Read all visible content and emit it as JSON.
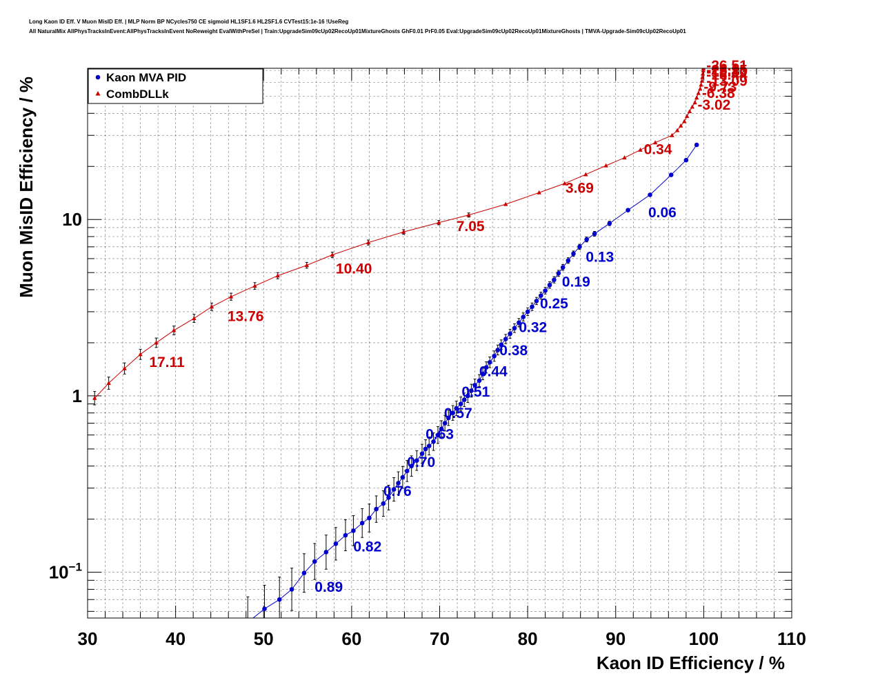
{
  "header": {
    "title_line1": "Long Kaon ID Eff. V Muon MisID Eff. | MLP Norm BP NCycles750 CE sigmoid HL1SF1.6 HL2SF1.6 CVTest15:1e-16 !UseReg",
    "title_line2": "All NaturalMix AllPhysTracksInEvent:AllPhysTracksInEvent NoReweight EvalWithPreSel | Train:UpgradeSim09cUp02RecoUp01MixtureGhosts GhF0.01 PrF0.05 Eval:UpgradeSim09cUp02RecoUp01MixtureGhosts | TMVA-Upgrade-Sim09cUp02RecoUp01"
  },
  "chart_data": {
    "type": "scatter",
    "xlabel": "Kaon ID Efficiency / %",
    "ylabel": "Muon MisID Efficiency / %",
    "xlim": [
      30,
      110
    ],
    "ylim": [
      0.055,
      72
    ],
    "xscale": "linear",
    "yscale": "log",
    "grid": true,
    "legend_position": "top-left",
    "x_ticks": [
      "30",
      "40",
      "50",
      "60",
      "70",
      "80",
      "90",
      "100",
      "110"
    ],
    "y_ticks": [
      {
        "value": 0.1,
        "base": "10",
        "exp": "−1"
      },
      {
        "value": 1,
        "base": "1",
        "exp": ""
      },
      {
        "value": 10,
        "base": "10",
        "exp": ""
      }
    ],
    "series": [
      {
        "name": "Kaon MVA PID",
        "color": "#0000cc",
        "marker": "circle",
        "points": [
          [
            48.2,
            0.052
          ],
          [
            50.1,
            0.062
          ],
          [
            51.8,
            0.07
          ],
          [
            53.2,
            0.08
          ],
          [
            54.6,
            0.099
          ],
          [
            55.8,
            0.115
          ],
          [
            57.1,
            0.13
          ],
          [
            58.2,
            0.145
          ],
          [
            59.3,
            0.162
          ],
          [
            60.2,
            0.172
          ],
          [
            61.2,
            0.19
          ],
          [
            62.0,
            0.203
          ],
          [
            62.8,
            0.228
          ],
          [
            63.6,
            0.245
          ],
          [
            64.2,
            0.265
          ],
          [
            64.8,
            0.295
          ],
          [
            65.3,
            0.32
          ],
          [
            65.8,
            0.345
          ],
          [
            66.3,
            0.375
          ],
          [
            66.8,
            0.4
          ],
          [
            67.4,
            0.43
          ],
          [
            68.0,
            0.47
          ],
          [
            68.4,
            0.5
          ],
          [
            68.8,
            0.52
          ],
          [
            69.3,
            0.55
          ],
          [
            69.8,
            0.6
          ],
          [
            70.2,
            0.65
          ],
          [
            70.6,
            0.7
          ],
          [
            71.0,
            0.75
          ],
          [
            71.5,
            0.8
          ],
          [
            71.9,
            0.85
          ],
          [
            72.4,
            0.9
          ],
          [
            72.8,
            0.95
          ],
          [
            73.2,
            1.0
          ],
          [
            73.6,
            1.07
          ],
          [
            74.0,
            1.15
          ],
          [
            74.5,
            1.22
          ],
          [
            74.9,
            1.33
          ],
          [
            75.3,
            1.45
          ],
          [
            75.7,
            1.55
          ],
          [
            76.2,
            1.68
          ],
          [
            76.6,
            1.82
          ],
          [
            77.0,
            1.95
          ],
          [
            77.5,
            2.1
          ],
          [
            78.0,
            2.25
          ],
          [
            78.5,
            2.42
          ],
          [
            79.0,
            2.6
          ],
          [
            79.5,
            2.8
          ],
          [
            80.0,
            3.0
          ],
          [
            80.5,
            3.2
          ],
          [
            81.0,
            3.45
          ],
          [
            81.5,
            3.7
          ],
          [
            82.0,
            3.95
          ],
          [
            82.5,
            4.25
          ],
          [
            83.0,
            4.55
          ],
          [
            83.5,
            4.95
          ],
          [
            84.0,
            5.35
          ],
          [
            84.6,
            5.85
          ],
          [
            85.2,
            6.4
          ],
          [
            85.9,
            7.0
          ],
          [
            86.7,
            7.7
          ],
          [
            87.6,
            8.3
          ],
          [
            89.3,
            9.5
          ],
          [
            91.4,
            11.3
          ],
          [
            93.9,
            13.8
          ],
          [
            96.3,
            17.9
          ],
          [
            98.0,
            21.7
          ],
          [
            99.2,
            26.5
          ]
        ],
        "labels": [
          {
            "text": "0.89",
            "x": 55.8,
            "y": 0.0775
          },
          {
            "text": "0.82",
            "x": 60.2,
            "y": 0.131
          },
          {
            "text": "0.76",
            "x": 63.6,
            "y": 0.271
          },
          {
            "text": "0.70",
            "x": 66.3,
            "y": 0.395
          },
          {
            "text": "0.63",
            "x": 68.4,
            "y": 0.57
          },
          {
            "text": "0.57",
            "x": 70.5,
            "y": 0.75
          },
          {
            "text": "0.51",
            "x": 72.5,
            "y": 0.99
          },
          {
            "text": "0.44",
            "x": 74.5,
            "y": 1.29
          },
          {
            "text": "0.38",
            "x": 76.8,
            "y": 1.7
          },
          {
            "text": "0.32",
            "x": 79.0,
            "y": 2.3
          },
          {
            "text": "0.25",
            "x": 81.4,
            "y": 3.13
          },
          {
            "text": "0.19",
            "x": 83.9,
            "y": 4.17
          },
          {
            "text": "0.13",
            "x": 86.6,
            "y": 5.75
          },
          {
            "text": "0.06",
            "x": 93.7,
            "y": 10.3
          }
        ]
      },
      {
        "name": "CombDLLk",
        "color": "#cc0000",
        "marker": "triangle",
        "points": [
          [
            30.8,
            0.97
          ],
          [
            32.4,
            1.18
          ],
          [
            34.2,
            1.43
          ],
          [
            36.0,
            1.72
          ],
          [
            37.8,
            2.0
          ],
          [
            39.8,
            2.35
          ],
          [
            42.1,
            2.75
          ],
          [
            44.1,
            3.2
          ],
          [
            46.3,
            3.65
          ],
          [
            49.0,
            4.2
          ],
          [
            51.6,
            4.8
          ],
          [
            54.9,
            5.5
          ],
          [
            57.8,
            6.3
          ],
          [
            61.9,
            7.4
          ],
          [
            65.9,
            8.5
          ],
          [
            69.9,
            9.6
          ],
          [
            73.3,
            10.6
          ],
          [
            77.5,
            12.2
          ],
          [
            81.3,
            14.2
          ],
          [
            84.2,
            16.0
          ],
          [
            86.6,
            18.0
          ],
          [
            88.9,
            20.2
          ],
          [
            91.0,
            22.4
          ],
          [
            92.8,
            24.8
          ],
          [
            94.5,
            27.3
          ],
          [
            96.4,
            30.0
          ],
          [
            97.0,
            32.0
          ],
          [
            97.4,
            34.0
          ],
          [
            97.8,
            36.0
          ],
          [
            98.1,
            38.5
          ],
          [
            98.4,
            41.0
          ],
          [
            98.7,
            43.5
          ],
          [
            99.0,
            46.0
          ],
          [
            99.2,
            49.0
          ],
          [
            99.4,
            52.0
          ],
          [
            99.6,
            55.0
          ],
          [
            99.7,
            58.0
          ],
          [
            99.8,
            61.0
          ],
          [
            99.85,
            64.0
          ],
          [
            99.9,
            67.0
          ],
          [
            99.95,
            70.0
          ],
          [
            99.97,
            72.0
          ]
        ],
        "labels": [
          {
            "text": "17.11",
            "x": 37.0,
            "y": 1.46
          },
          {
            "text": "13.76",
            "x": 45.9,
            "y": 2.65
          },
          {
            "text": "10.40",
            "x": 58.2,
            "y": 4.95
          },
          {
            "text": "7.05",
            "x": 71.9,
            "y": 8.6
          },
          {
            "text": "3.69",
            "x": 84.3,
            "y": 14.2
          },
          {
            "text": "0.34",
            "x": 93.2,
            "y": 23.5
          },
          {
            "text": "-3.02",
            "x": 99.3,
            "y": 42.0
          },
          {
            "text": "-6.38",
            "x": 99.8,
            "y": 48.8
          },
          {
            "text": "-9.73",
            "x": 100.0,
            "y": 53.0
          },
          {
            "text": "-13.09",
            "x": 100.3,
            "y": 57.3
          },
          {
            "text": "-16.44",
            "x": 100.3,
            "y": 62.0
          },
          {
            "text": "-19.80",
            "x": 100.3,
            "y": 64.6
          },
          {
            "text": "-23.15",
            "x": 100.3,
            "y": 66.0
          },
          {
            "text": "-26.51",
            "x": 100.3,
            "y": 70.2
          }
        ]
      }
    ]
  }
}
